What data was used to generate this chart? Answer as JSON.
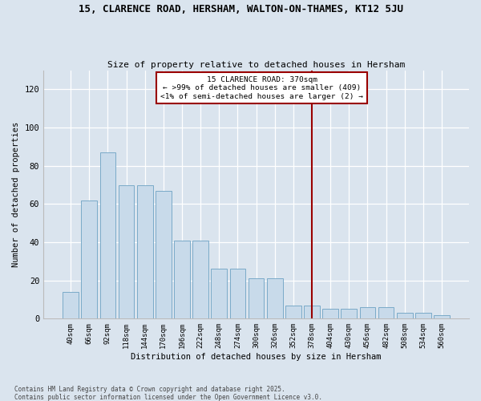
{
  "title": "15, CLARENCE ROAD, HERSHAM, WALTON-ON-THAMES, KT12 5JU",
  "subtitle": "Size of property relative to detached houses in Hersham",
  "xlabel": "Distribution of detached houses by size in Hersham",
  "ylabel": "Number of detached properties",
  "bar_color": "#c8daea",
  "bar_edge_color": "#7aaac8",
  "bg_color": "#dae4ee",
  "grid_color": "#ffffff",
  "categories": [
    "40sqm",
    "66sqm",
    "92sqm",
    "118sqm",
    "144sqm",
    "170sqm",
    "196sqm",
    "222sqm",
    "248sqm",
    "274sqm",
    "300sqm",
    "326sqm",
    "352sqm",
    "378sqm",
    "404sqm",
    "430sqm",
    "456sqm",
    "482sqm",
    "508sqm",
    "534sqm",
    "560sqm"
  ],
  "values": [
    14,
    62,
    87,
    70,
    70,
    67,
    41,
    41,
    26,
    26,
    21,
    21,
    7,
    7,
    5,
    5,
    6,
    6,
    3,
    3,
    2
  ],
  "vline_color": "#990000",
  "vline_index": 13,
  "annotation_title": "15 CLARENCE ROAD: 370sqm",
  "annotation_line1": "← >99% of detached houses are smaller (409)",
  "annotation_line2": "<1% of semi-detached houses are larger (2) →",
  "footer": "Contains HM Land Registry data © Crown copyright and database right 2025.\nContains public sector information licensed under the Open Government Licence v3.0.",
  "ylim_max": 130,
  "yticks": [
    0,
    20,
    40,
    60,
    80,
    100,
    120
  ],
  "figsize": [
    6.0,
    5.0
  ],
  "dpi": 100
}
